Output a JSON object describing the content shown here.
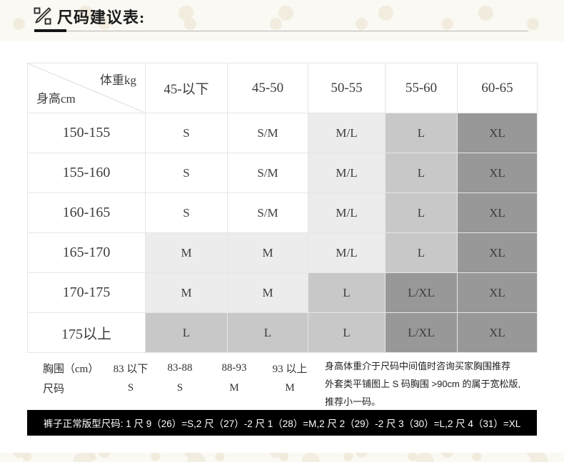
{
  "header": {
    "title": "尺码建议表:"
  },
  "colors": {
    "panel_bg": "#ffffff",
    "page_bg": "#fbf9f3",
    "pants_bar_bg": "#000000",
    "pants_bar_fg": "#ffffff",
    "table_border": "#e6e6e6"
  },
  "chart_data": {
    "type": "table",
    "title": "尺码建议表",
    "corner": {
      "top_right": "体重kg",
      "bottom_left": "身高cm"
    },
    "weight_columns": [
      "45-以下",
      "45-50",
      "50-55",
      "55-60",
      "60-65"
    ],
    "shade_colors": {
      "none": "#ffffff",
      "light": "#ececec",
      "medium": "#c8c8c8",
      "dark": "#989898"
    },
    "rows": [
      {
        "height": "150-155",
        "cells": [
          {
            "label": "S",
            "shade": "none"
          },
          {
            "label": "S/M",
            "shade": "none"
          },
          {
            "label": "M/L",
            "shade": "light"
          },
          {
            "label": "L",
            "shade": "medium"
          },
          {
            "label": "XL",
            "shade": "dark"
          }
        ]
      },
      {
        "height": "155-160",
        "cells": [
          {
            "label": "S",
            "shade": "none"
          },
          {
            "label": "S/M",
            "shade": "none"
          },
          {
            "label": "M/L",
            "shade": "light"
          },
          {
            "label": "L",
            "shade": "medium"
          },
          {
            "label": "XL",
            "shade": "dark"
          }
        ]
      },
      {
        "height": "160-165",
        "cells": [
          {
            "label": "S",
            "shade": "none"
          },
          {
            "label": "S/M",
            "shade": "none"
          },
          {
            "label": "M/L",
            "shade": "light"
          },
          {
            "label": "L",
            "shade": "medium"
          },
          {
            "label": "XL",
            "shade": "dark"
          }
        ]
      },
      {
        "height": "165-170",
        "cells": [
          {
            "label": "M",
            "shade": "light"
          },
          {
            "label": "M",
            "shade": "light"
          },
          {
            "label": "M/L",
            "shade": "light"
          },
          {
            "label": "L",
            "shade": "medium"
          },
          {
            "label": "XL",
            "shade": "dark"
          }
        ]
      },
      {
        "height": "170-175",
        "cells": [
          {
            "label": "M",
            "shade": "light"
          },
          {
            "label": "M",
            "shade": "light"
          },
          {
            "label": "L",
            "shade": "medium"
          },
          {
            "label": "L/XL",
            "shade": "dark"
          },
          {
            "label": "XL",
            "shade": "dark"
          }
        ]
      },
      {
        "height": "175以上",
        "cells": [
          {
            "label": "L",
            "shade": "medium"
          },
          {
            "label": "L",
            "shade": "medium"
          },
          {
            "label": "L",
            "shade": "medium"
          },
          {
            "label": "L/XL",
            "shade": "dark"
          },
          {
            "label": "XL",
            "shade": "dark"
          }
        ]
      }
    ]
  },
  "chest_info": {
    "row1_label": "胸围（cm）",
    "row2_label": "尺码",
    "columns": [
      {
        "range": "83 以下",
        "size": "S"
      },
      {
        "range": "83-88",
        "size": "S"
      },
      {
        "range": "88-93",
        "size": "M"
      },
      {
        "range": "93 以上",
        "size": "M"
      }
    ],
    "notes": [
      "身高体重介于尺码中间值时咨询买家胸围推荐",
      "外套类平铺图上 S 码胸围 >90cm 的属于宽松版,",
      "推荐小一码。"
    ]
  },
  "pants_bar": {
    "text": "裤子正常版型尺码: 1 尺 9（26）=S,2 尺（27）-2 尺 1（28）=M,2 尺 2（29）-2 尺 3（30）=L,2 尺 4（31）=XL"
  }
}
